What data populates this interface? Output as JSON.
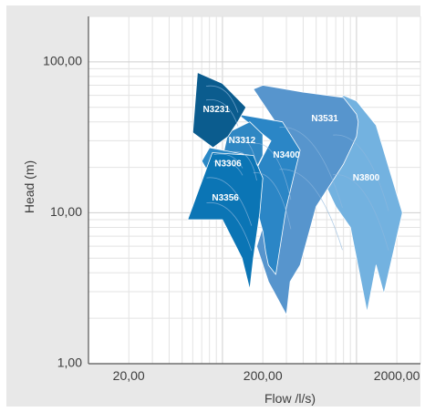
{
  "chart_data": {
    "type": "area",
    "xlabel": "Flow /l/s)",
    "ylabel": "Head (m)",
    "xscale": "log",
    "yscale": "log",
    "xlim": [
      10,
      3000
    ],
    "ylim": [
      1,
      200
    ],
    "grid": true,
    "x_ticks": [
      {
        "value": 20,
        "label": "20,00"
      },
      {
        "value": 200,
        "label": "200,00"
      },
      {
        "value": 2000,
        "label": "2000,00"
      }
    ],
    "y_ticks": [
      {
        "value": 1,
        "label": "1,00"
      },
      {
        "value": 10,
        "label": "10,00"
      },
      {
        "value": 100,
        "label": "100,00"
      }
    ],
    "colors": {
      "N3231": "#0b5c8e",
      "N3312": "#2f87c3",
      "N3306": "#2a88c6",
      "N3356": "#0b75b5",
      "N3400": "#2b86c6",
      "N3531": "#5795cd",
      "N3800": "#73b2e0",
      "sub_curve": "#8fb8de",
      "label": "#ffffff"
    },
    "series": [
      {
        "name": "N3800",
        "boundary": [
          [
            800,
            60
          ],
          [
            1000,
            55
          ],
          [
            1400,
            38
          ],
          [
            2200,
            10
          ],
          [
            1600,
            2.9
          ],
          [
            1400,
            4.5
          ],
          [
            1200,
            2.2
          ],
          [
            900,
            8
          ],
          [
            700,
            11
          ],
          [
            450,
            25
          ],
          [
            500,
            40
          ]
        ],
        "label_at": [
          1180,
          17
        ]
      },
      {
        "name": "N3531",
        "boundary": [
          [
            170,
            66
          ],
          [
            200,
            70
          ],
          [
            400,
            63
          ],
          [
            800,
            58
          ],
          [
            1000,
            45
          ],
          [
            1030,
            40
          ],
          [
            1000,
            32
          ],
          [
            800,
            21
          ],
          [
            500,
            11
          ],
          [
            380,
            4.5
          ],
          [
            320,
            3.5
          ],
          [
            300,
            2.1
          ],
          [
            220,
            3.5
          ],
          [
            180,
            6
          ],
          [
            290,
            23
          ],
          [
            280,
            34
          ]
        ],
        "label_at": [
          580,
          42
        ]
      },
      {
        "name": "N3400",
        "boundary": [
          [
            130,
            45
          ],
          [
            280,
            40
          ],
          [
            380,
            26
          ],
          [
            300,
            11
          ],
          [
            250,
            3.9
          ],
          [
            220,
            4.5
          ],
          [
            210,
            5.5
          ],
          [
            200,
            7.5
          ],
          [
            160,
            16
          ],
          [
            230,
            30
          ]
        ],
        "label_at": [
          300,
          24
        ]
      },
      {
        "name": "N3312",
        "boundary": [
          [
            110,
            34
          ],
          [
            160,
            40
          ],
          [
            200,
            33
          ],
          [
            200,
            24
          ],
          [
            140,
            13
          ],
          [
            120,
            11.5
          ],
          [
            100,
            23
          ]
        ],
        "label_at": [
          140,
          30
        ]
      },
      {
        "name": "N3231",
        "boundary": [
          [
            65,
            85
          ],
          [
            100,
            72
          ],
          [
            150,
            50
          ],
          [
            130,
            40
          ],
          [
            110,
            32
          ],
          [
            85,
            27
          ],
          [
            60,
            34
          ]
        ],
        "label_at": [
          90,
          48
        ]
      },
      {
        "name": "N3306",
        "boundary": [
          [
            80,
            27
          ],
          [
            160,
            24
          ],
          [
            150,
            17
          ],
          [
            90,
            15
          ],
          [
            70,
            22
          ]
        ],
        "label_at": [
          110,
          21
        ]
      },
      {
        "name": "N3356",
        "boundary": [
          [
            84,
            25
          ],
          [
            170,
            24
          ],
          [
            200,
            17
          ],
          [
            190,
            10
          ],
          [
            170,
            5
          ],
          [
            160,
            3.1
          ],
          [
            140,
            5
          ],
          [
            100,
            9
          ],
          [
            55,
            9
          ]
        ],
        "label_at": [
          105,
          12.5
        ]
      }
    ]
  }
}
